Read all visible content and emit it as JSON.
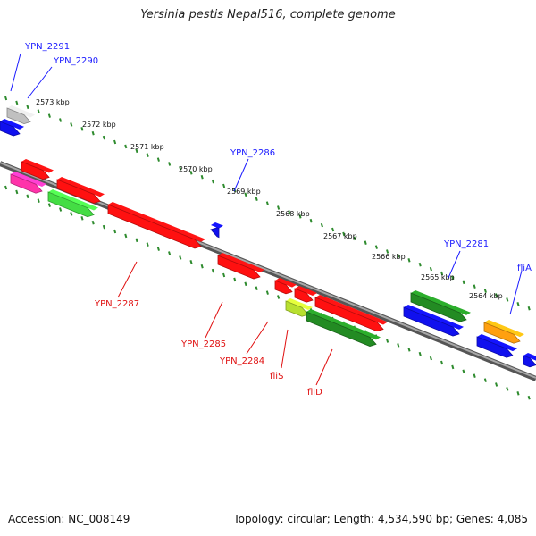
{
  "title": "Yersinia pestis Nepal516, complete genome",
  "footer": {
    "accession": "Accession: NC_008149",
    "info": "Topology: circular; Length: 4,534,590 bp; Genes: 4,085"
  },
  "colors": {
    "backbone": "#808080",
    "tick_ring": "#2e8b2e",
    "label_forward": "#1a1aff",
    "label_reverse": "#e01010",
    "blue": "#1010ee",
    "red": "#ff1010",
    "light_green": "#44dd44",
    "dark_green": "#238b23",
    "magenta": "#ff33aa",
    "orange": "#ffa010",
    "grey": "#c0c0c0",
    "yellow_green": "#b8e030"
  },
  "scale_labels": [
    "2573 kbp",
    "2572 kbp",
    "2571 kbp",
    "2570 kbp",
    "2569 kbp",
    "2568 kbp",
    "2567 kbp",
    "2566 kbp",
    "2565 kbp",
    "2564 kbp"
  ],
  "gene_labels_top": [
    "YPN_2291",
    "YPN_2290",
    "YPN_2286",
    "YPN_2281",
    "fliA"
  ],
  "gene_labels_bottom": [
    "YPN_2287",
    "YPN_2285",
    "YPN_2284",
    "fliS",
    "fliD"
  ]
}
